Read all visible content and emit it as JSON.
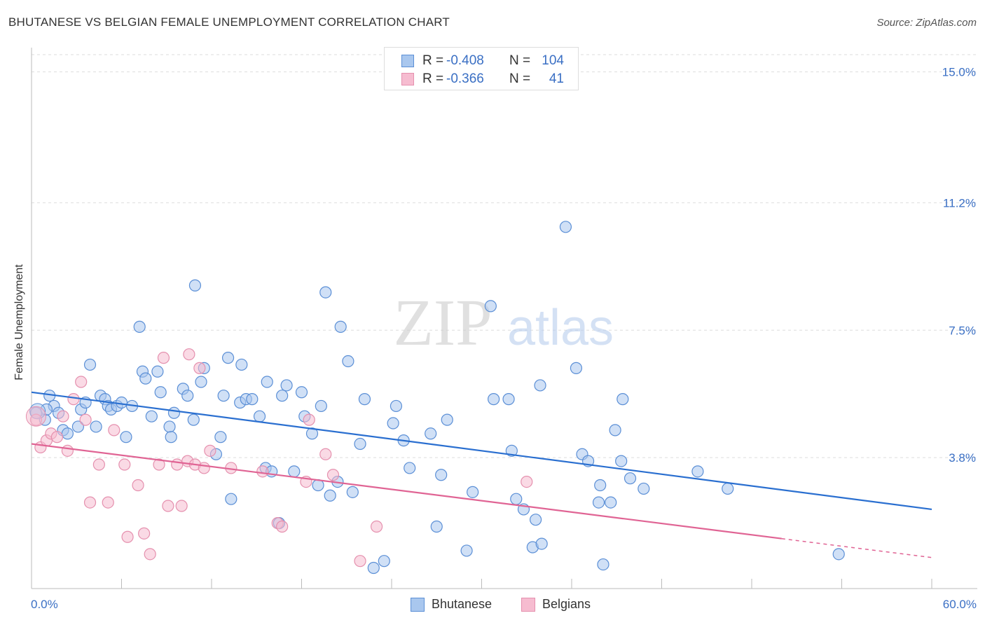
{
  "header": {
    "title": "BHUTANESE VS BELGIAN FEMALE UNEMPLOYMENT CORRELATION CHART",
    "source": "Source: ZipAtlas.com"
  },
  "legend": {
    "rows": [
      {
        "r_label": "R =",
        "r_value": "-0.408",
        "n_label": "N =",
        "n_value": "104"
      },
      {
        "r_label": "R =",
        "r_value": "-0.366",
        "n_label": "N =",
        "n_value": "41"
      }
    ]
  },
  "watermark": {
    "zip": "ZIP",
    "atlas": "atlas"
  },
  "chart_data": {
    "type": "scatter",
    "title": "BHUTANESE VS BELGIAN FEMALE UNEMPLOYMENT CORRELATION CHART",
    "xlabel": "",
    "ylabel": "Female Unemployment",
    "xlim": [
      0,
      60
    ],
    "ylim": [
      0,
      15.5
    ],
    "x_tick_labels": [
      "0.0%",
      "60.0%"
    ],
    "y_ticks": [
      {
        "value": 3.8,
        "label": "3.8%"
      },
      {
        "value": 7.5,
        "label": "7.5%"
      },
      {
        "value": 11.2,
        "label": "11.2%"
      },
      {
        "value": 15.0,
        "label": "15.0%"
      }
    ],
    "grid": true,
    "legend_position": "top-center",
    "colors": {
      "blue_fill": "#a9c7ee",
      "blue_stroke": "#5b8fd6",
      "blue_line": "#2a6fd0",
      "pink_fill": "#f6bcd0",
      "pink_stroke": "#e590ae",
      "pink_line": "#e06494",
      "tick_label": "#3a6fc4"
    },
    "series": [
      {
        "name": "Bhutanese",
        "trend": {
          "x0": 0,
          "y0": 5.7,
          "x1": 60,
          "y1": 2.3,
          "solid_until": 60
        },
        "points": [
          [
            0.3,
            5.1
          ],
          [
            0.9,
            4.9
          ],
          [
            1.2,
            5.6
          ],
          [
            1.5,
            5.3
          ],
          [
            1.8,
            5.1
          ],
          [
            2.1,
            4.6
          ],
          [
            2.4,
            4.5
          ],
          [
            3.1,
            4.7
          ],
          [
            3.3,
            5.2
          ],
          [
            3.6,
            5.4
          ],
          [
            3.9,
            6.5
          ],
          [
            4.3,
            4.7
          ],
          [
            4.6,
            5.6
          ],
          [
            4.9,
            5.5
          ],
          [
            5.1,
            5.3
          ],
          [
            5.3,
            5.2
          ],
          [
            5.7,
            5.3
          ],
          [
            6.0,
            5.4
          ],
          [
            6.3,
            4.4
          ],
          [
            6.7,
            5.3
          ],
          [
            7.2,
            7.6
          ],
          [
            7.4,
            6.3
          ],
          [
            7.6,
            6.1
          ],
          [
            8.0,
            5.0
          ],
          [
            8.4,
            6.3
          ],
          [
            8.6,
            5.7
          ],
          [
            9.2,
            4.7
          ],
          [
            9.3,
            4.4
          ],
          [
            9.5,
            5.1
          ],
          [
            10.1,
            5.8
          ],
          [
            10.4,
            5.6
          ],
          [
            10.8,
            4.9
          ],
          [
            10.9,
            8.8
          ],
          [
            11.3,
            6.0
          ],
          [
            11.5,
            6.4
          ],
          [
            12.3,
            3.9
          ],
          [
            12.6,
            4.4
          ],
          [
            12.8,
            5.6
          ],
          [
            13.1,
            6.7
          ],
          [
            13.3,
            2.6
          ],
          [
            13.9,
            5.4
          ],
          [
            14.0,
            6.5
          ],
          [
            14.3,
            5.5
          ],
          [
            14.7,
            5.5
          ],
          [
            15.2,
            5.0
          ],
          [
            15.6,
            3.5
          ],
          [
            15.7,
            6.0
          ],
          [
            16.0,
            3.4
          ],
          [
            16.5,
            1.9
          ],
          [
            16.7,
            5.6
          ],
          [
            17.0,
            5.9
          ],
          [
            17.5,
            3.4
          ],
          [
            18.0,
            5.7
          ],
          [
            18.2,
            5.0
          ],
          [
            18.7,
            4.5
          ],
          [
            19.1,
            3.0
          ],
          [
            19.3,
            5.3
          ],
          [
            19.6,
            8.6
          ],
          [
            19.9,
            2.7
          ],
          [
            20.4,
            3.1
          ],
          [
            20.6,
            7.6
          ],
          [
            21.1,
            6.6
          ],
          [
            21.4,
            2.8
          ],
          [
            21.9,
            4.2
          ],
          [
            22.2,
            5.5
          ],
          [
            22.8,
            0.6
          ],
          [
            23.5,
            0.8
          ],
          [
            24.1,
            4.8
          ],
          [
            24.3,
            5.3
          ],
          [
            24.8,
            4.3
          ],
          [
            25.2,
            3.5
          ],
          [
            26.6,
            4.5
          ],
          [
            27.0,
            1.8
          ],
          [
            27.3,
            3.3
          ],
          [
            27.7,
            4.9
          ],
          [
            29.0,
            1.1
          ],
          [
            29.4,
            2.8
          ],
          [
            30.6,
            8.2
          ],
          [
            30.8,
            5.5
          ],
          [
            31.8,
            5.5
          ],
          [
            32.0,
            4.0
          ],
          [
            32.3,
            2.6
          ],
          [
            32.8,
            2.3
          ],
          [
            33.4,
            1.2
          ],
          [
            33.6,
            2.0
          ],
          [
            33.9,
            5.9
          ],
          [
            34.0,
            1.3
          ],
          [
            35.6,
            10.5
          ],
          [
            36.3,
            6.4
          ],
          [
            36.7,
            3.9
          ],
          [
            37.1,
            3.7
          ],
          [
            37.8,
            2.5
          ],
          [
            37.9,
            3.0
          ],
          [
            38.1,
            0.7
          ],
          [
            38.6,
            2.5
          ],
          [
            38.9,
            4.6
          ],
          [
            39.3,
            3.7
          ],
          [
            39.4,
            5.5
          ],
          [
            39.9,
            3.2
          ],
          [
            40.8,
            2.9
          ],
          [
            44.4,
            3.4
          ],
          [
            46.4,
            2.9
          ],
          [
            53.8,
            1.0
          ],
          [
            1.0,
            5.2
          ]
        ]
      },
      {
        "name": "Belgians",
        "trend": {
          "x0": 0,
          "y0": 4.2,
          "x1": 60,
          "y1": 0.9,
          "solid_until": 50
        },
        "points": [
          [
            0.3,
            4.9
          ],
          [
            0.6,
            4.1
          ],
          [
            1.0,
            4.3
          ],
          [
            1.3,
            4.5
          ],
          [
            1.7,
            4.4
          ],
          [
            2.1,
            5.0
          ],
          [
            2.4,
            4.0
          ],
          [
            2.8,
            5.5
          ],
          [
            3.3,
            6.0
          ],
          [
            3.6,
            4.9
          ],
          [
            3.9,
            2.5
          ],
          [
            4.5,
            3.6
          ],
          [
            5.1,
            2.5
          ],
          [
            5.5,
            4.6
          ],
          [
            6.2,
            3.6
          ],
          [
            6.4,
            1.5
          ],
          [
            7.1,
            3.0
          ],
          [
            7.5,
            1.6
          ],
          [
            7.9,
            1.0
          ],
          [
            8.5,
            3.6
          ],
          [
            8.8,
            6.7
          ],
          [
            9.1,
            2.4
          ],
          [
            9.7,
            3.6
          ],
          [
            10.0,
            2.4
          ],
          [
            10.4,
            3.7
          ],
          [
            10.5,
            6.8
          ],
          [
            10.9,
            3.6
          ],
          [
            11.2,
            6.4
          ],
          [
            11.5,
            3.5
          ],
          [
            11.9,
            4.0
          ],
          [
            13.3,
            3.5
          ],
          [
            15.4,
            3.4
          ],
          [
            16.4,
            1.9
          ],
          [
            16.7,
            1.8
          ],
          [
            18.3,
            3.1
          ],
          [
            18.5,
            4.9
          ],
          [
            19.6,
            3.9
          ],
          [
            20.1,
            3.3
          ],
          [
            21.9,
            0.8
          ],
          [
            23.0,
            1.8
          ],
          [
            33.0,
            3.1
          ]
        ]
      }
    ]
  },
  "bottom_legend": {
    "items": [
      "Bhutanese",
      "Belgians"
    ]
  }
}
